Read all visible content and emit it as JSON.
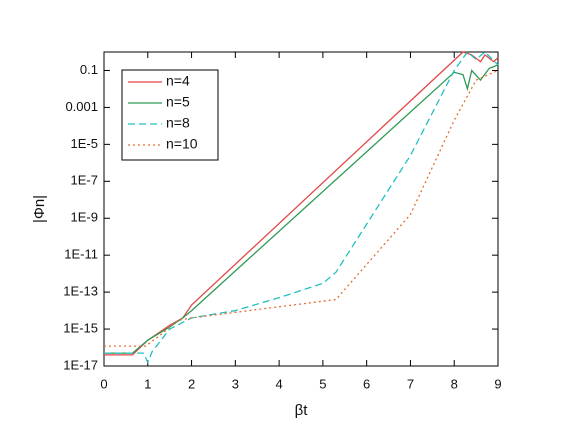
{
  "chart_data": {
    "type": "line",
    "xlabel": "βt",
    "ylabel": "|Φn|",
    "xlim": [
      0,
      9
    ],
    "xticks": [
      0,
      1,
      2,
      3,
      4,
      5,
      6,
      7,
      8,
      9
    ],
    "ylim": [
      1e-17,
      1
    ],
    "ylog": true,
    "yticks": [
      {
        "value": 1e-17,
        "label": "1E-17"
      },
      {
        "value": 1e-15,
        "label": "1E-15"
      },
      {
        "value": 1e-13,
        "label": "1E-13"
      },
      {
        "value": 1e-11,
        "label": "1E-11"
      },
      {
        "value": 1e-09,
        "label": "1E-9"
      },
      {
        "value": 1e-07,
        "label": "1E-7"
      },
      {
        "value": 1e-05,
        "label": "1E-5"
      },
      0.001,
      0.1
    ],
    "legend": "top-left",
    "series": [
      {
        "name": "n=4",
        "color": "#e04848",
        "style": "solid",
        "x": [
          0,
          0.65,
          1,
          1.5,
          1.8,
          2,
          8.2,
          8.4,
          8.6,
          8.7,
          8.9,
          9
        ],
        "values": [
          4e-17,
          4e-17,
          2.5e-16,
          1.6e-15,
          4e-15,
          2e-14,
          1,
          0.7,
          0.3,
          0.7,
          0.3,
          0.5
        ]
      },
      {
        "name": "n=5",
        "color": "#2e9a55",
        "style": "solid",
        "x": [
          0,
          0.65,
          1,
          1.5,
          1.8,
          2,
          8,
          8.2,
          8.3,
          8.4,
          8.6,
          8.8,
          9
        ],
        "values": [
          5e-17,
          5e-17,
          2.5e-16,
          1.3e-15,
          4e-15,
          1e-14,
          0.08,
          0.06,
          0.01,
          0.1,
          0.03,
          0.13,
          0.2
        ]
      },
      {
        "name": "n=8",
        "color": "#20c0c0",
        "style": "dashed",
        "x": [
          0,
          0.9,
          1,
          1.1,
          1.5,
          2,
          3,
          4,
          5,
          5.3,
          7,
          8,
          8.3,
          8.5,
          8.7,
          9
        ],
        "values": [
          5e-17,
          5e-17,
          1.6e-17,
          6e-17,
          1e-15,
          4e-15,
          1e-14,
          5e-14,
          3e-13,
          1.2e-12,
          2.5e-06,
          0.1,
          1,
          0.4,
          1,
          0.2
        ]
      },
      {
        "name": "n=10",
        "color": "#e07030",
        "style": "dotted",
        "x": [
          0,
          0.95,
          1.3,
          1.7,
          2,
          5.3,
          7,
          8,
          8.5,
          9
        ],
        "values": [
          1.2e-16,
          1.2e-16,
          5e-16,
          3e-15,
          4e-15,
          4e-14,
          1.6e-09,
          0.0002,
          0.03,
          0.1
        ]
      }
    ]
  }
}
